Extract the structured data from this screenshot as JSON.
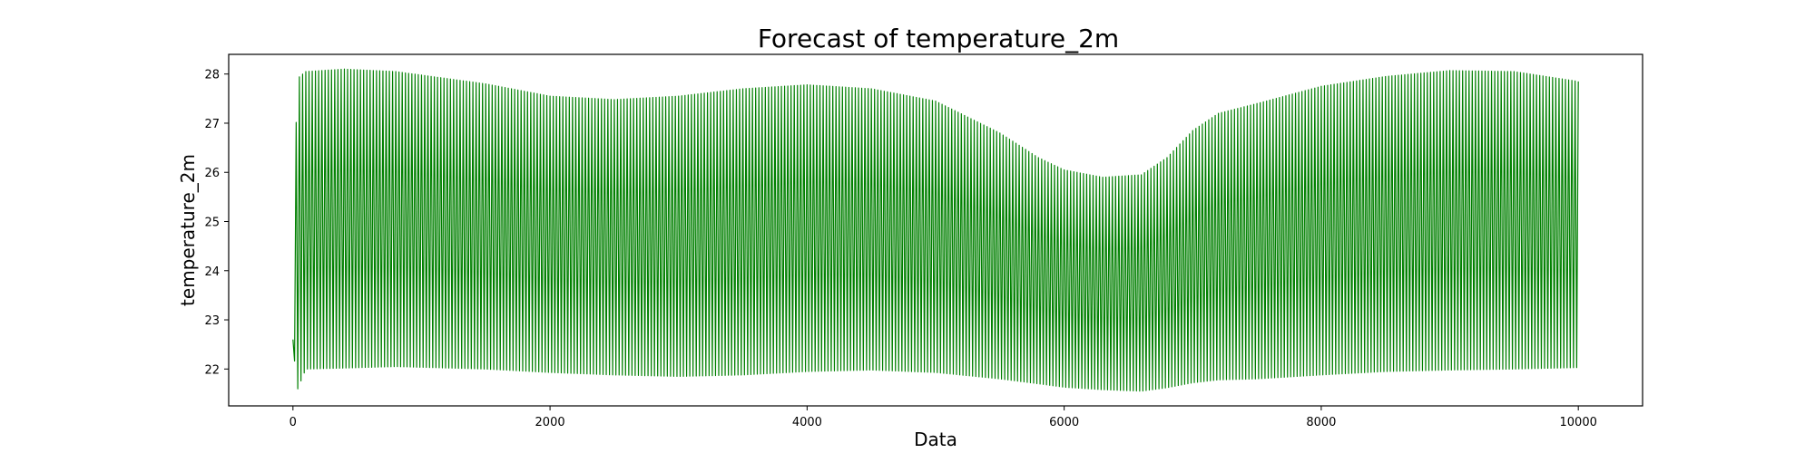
{
  "chart_data": {
    "type": "line",
    "title": "Forecast of temperature_2m",
    "xlabel": "Data",
    "ylabel": "temperature_2m",
    "xlim": [
      -500,
      10500
    ],
    "ylim": [
      21.25,
      28.4
    ],
    "grid": false,
    "x_ticks": [
      0,
      2000,
      4000,
      6000,
      8000,
      10000
    ],
    "y_ticks": [
      22,
      23,
      24,
      25,
      26,
      27,
      28
    ],
    "series": [
      {
        "color": "#008000",
        "points_per_cycle": 2,
        "x": [
          0,
          10000
        ],
        "envelope": {
          "x": [
            0,
            30,
            100,
            400,
            800,
            1500,
            2000,
            2500,
            3000,
            3500,
            4000,
            4500,
            5000,
            5500,
            5800,
            6000,
            6300,
            6600,
            6800,
            7000,
            7200,
            7500,
            8000,
            8500,
            9000,
            9500,
            10000
          ],
          "upper": [
            22.6,
            27.9,
            28.05,
            28.1,
            28.05,
            27.8,
            27.55,
            27.48,
            27.55,
            27.7,
            27.78,
            27.7,
            27.45,
            26.8,
            26.3,
            26.05,
            25.9,
            25.95,
            26.3,
            26.85,
            27.2,
            27.4,
            27.75,
            27.95,
            28.07,
            28.05,
            27.85
          ],
          "lower": [
            22.6,
            21.55,
            22.0,
            22.02,
            22.05,
            22.0,
            21.93,
            21.88,
            21.85,
            21.88,
            21.95,
            21.98,
            21.93,
            21.8,
            21.7,
            21.63,
            21.58,
            21.55,
            21.62,
            21.72,
            21.78,
            21.8,
            21.88,
            21.95,
            21.98,
            22.0,
            22.03
          ]
        },
        "cycles": 400
      }
    ]
  }
}
